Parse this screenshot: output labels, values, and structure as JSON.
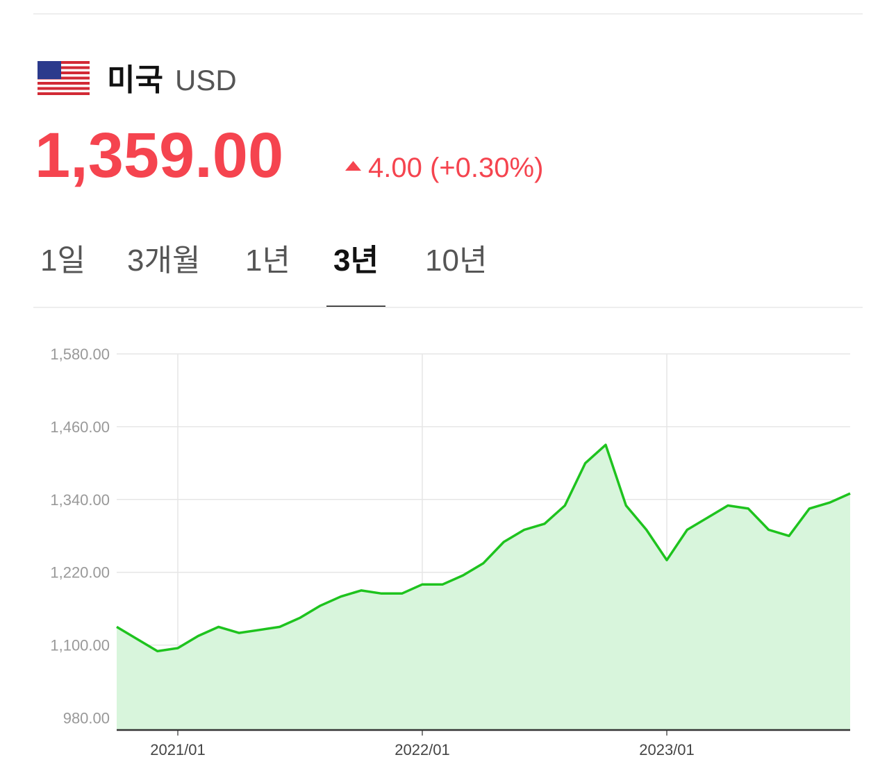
{
  "header": {
    "country": "미국",
    "currency": "USD",
    "price": "1,359.00",
    "change": "4.00 (+0.30%)"
  },
  "tabs": {
    "items": [
      "1일",
      "3개월",
      "1년",
      "3년",
      "10년"
    ],
    "selected": 3
  },
  "chart_data": {
    "type": "area",
    "color": "#1ec31e",
    "fill": "#d8f5dc",
    "grid": true,
    "x": [
      "2020/10",
      "2020/11",
      "2020/12",
      "2021/01",
      "2021/02",
      "2021/03",
      "2021/04",
      "2021/05",
      "2021/06",
      "2021/07",
      "2021/08",
      "2021/09",
      "2021/10",
      "2021/11",
      "2021/12",
      "2022/01",
      "2022/02",
      "2022/03",
      "2022/04",
      "2022/05",
      "2022/06",
      "2022/07",
      "2022/08",
      "2022/09",
      "2022/10",
      "2022/11",
      "2022/12",
      "2023/01",
      "2023/02",
      "2023/03",
      "2023/04",
      "2023/05",
      "2023/06",
      "2023/07",
      "2023/08",
      "2023/09",
      "2023/10"
    ],
    "values": [
      1130,
      1110,
      1090,
      1095,
      1115,
      1130,
      1120,
      1125,
      1130,
      1145,
      1165,
      1180,
      1190,
      1185,
      1185,
      1200,
      1200,
      1215,
      1235,
      1270,
      1290,
      1300,
      1330,
      1400,
      1430,
      1330,
      1290,
      1240,
      1290,
      1310,
      1330,
      1325,
      1290,
      1280,
      1325,
      1335,
      1350
    ],
    "xlim": [
      "2020/10",
      "2023/10"
    ],
    "xticks": [
      "2021/01",
      "2022/01",
      "2023/01"
    ],
    "ylim": [
      960,
      1580
    ],
    "yticks": [
      {
        "value": 980,
        "label": "980.00"
      },
      {
        "value": 1100,
        "label": "1,100.00"
      },
      {
        "value": 1220,
        "label": "1,220.00"
      },
      {
        "value": 1340,
        "label": "1,340.00"
      },
      {
        "value": 1460,
        "label": "1,460.00"
      },
      {
        "value": 1580,
        "label": "1,580.00"
      }
    ]
  }
}
